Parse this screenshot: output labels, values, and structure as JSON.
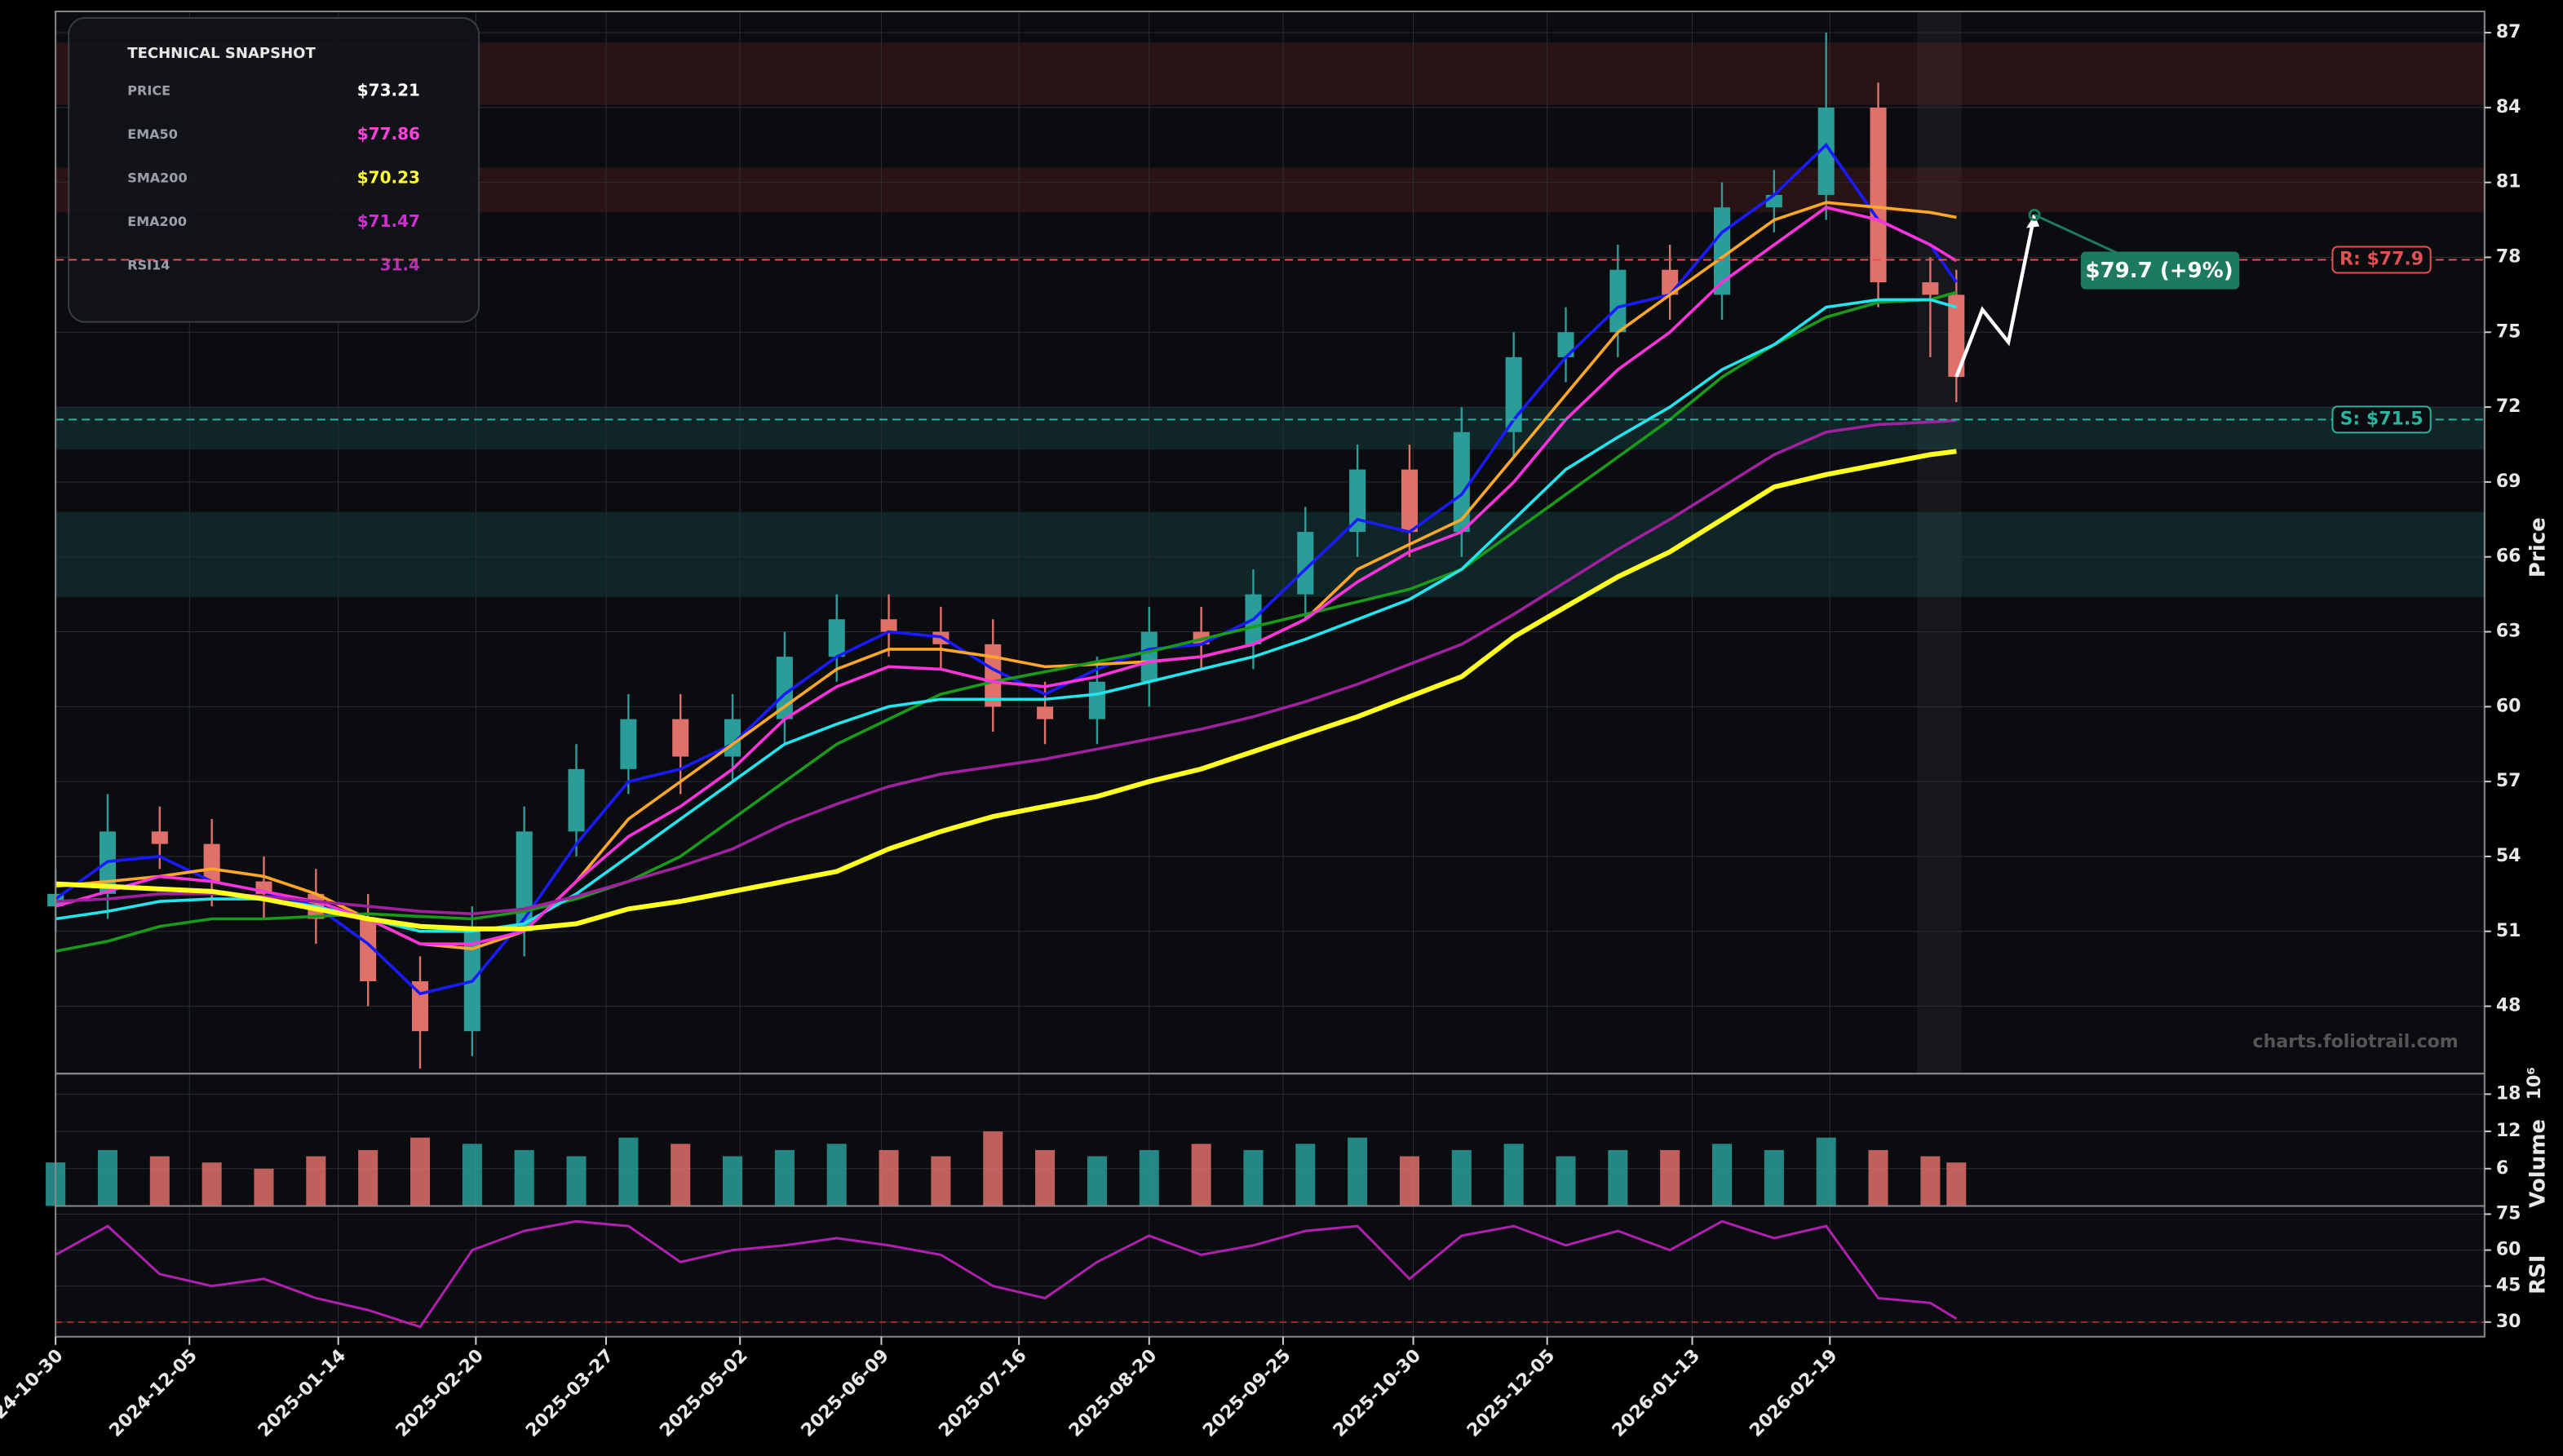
{
  "chart_data": {
    "type": "candlestick",
    "x": [
      "2024-10-30",
      "2024-11-13",
      "2024-11-27",
      "2024-12-11",
      "2024-12-25",
      "2025-01-08",
      "2025-01-22",
      "2025-02-05",
      "2025-02-19",
      "2025-03-05",
      "2025-03-19",
      "2025-04-02",
      "2025-04-16",
      "2025-04-30",
      "2025-05-14",
      "2025-05-28",
      "2025-06-11",
      "2025-06-25",
      "2025-07-09",
      "2025-07-23",
      "2025-08-06",
      "2025-08-20",
      "2025-09-03",
      "2025-09-17",
      "2025-10-01",
      "2025-10-15",
      "2025-10-29",
      "2025-11-12",
      "2025-11-26",
      "2025-12-10",
      "2025-12-24",
      "2026-01-07",
      "2026-01-21",
      "2026-02-04",
      "2026-02-18",
      "2026-03-04",
      "2026-03-18",
      "2026-03-25"
    ],
    "open": [
      52,
      52.5,
      55,
      54.5,
      53,
      52.5,
      51.5,
      49,
      47,
      51,
      55,
      57.5,
      59.5,
      58,
      59.5,
      62,
      63.5,
      63,
      62.5,
      60,
      59.5,
      61,
      63,
      62.5,
      64.5,
      67,
      69.5,
      67,
      71,
      74,
      75,
      77.5,
      76.5,
      80,
      80.5,
      84,
      77,
      76.5
    ],
    "high": [
      53.5,
      56.5,
      56,
      55.5,
      54,
      53.5,
      52.5,
      50,
      52,
      56,
      58.5,
      60.5,
      60.5,
      60.5,
      63,
      64.5,
      64.5,
      64,
      63.5,
      61,
      62,
      64,
      64,
      65.5,
      68,
      70.5,
      70.5,
      72,
      75,
      76,
      78.5,
      78.5,
      81,
      81.5,
      87,
      85,
      78,
      77.5
    ],
    "low": [
      51,
      51.5,
      53.5,
      52,
      51.5,
      50.5,
      48,
      45.5,
      46,
      50,
      54,
      56.5,
      56.5,
      57,
      58.5,
      61,
      62,
      61.5,
      59,
      58.5,
      58.5,
      60,
      61.5,
      61.5,
      63.5,
      66,
      66,
      66,
      70,
      73,
      74,
      75.5,
      75.5,
      79,
      79.5,
      76,
      74,
      72.2
    ],
    "close": [
      52.5,
      55,
      54.5,
      53,
      52.5,
      51.5,
      49,
      47,
      51,
      55,
      57.5,
      59.5,
      58,
      59.5,
      62,
      63.5,
      63,
      62.5,
      60,
      59.5,
      61,
      63,
      62.5,
      64.5,
      67,
      69.5,
      67,
      71,
      74,
      75,
      77.5,
      76.5,
      80,
      80.5,
      84,
      77,
      76.5,
      73.21
    ],
    "up_color": "#2a9d99",
    "down_color": "#e0706a",
    "xlim": [
      "2024-10-30",
      "2026-08-14"
    ],
    "xticks": [
      "2024-10-30",
      "2024-12-05",
      "2025-01-14",
      "2025-02-20",
      "2025-03-27",
      "2025-05-02",
      "2025-06-09",
      "2025-07-16",
      "2025-08-20",
      "2025-09-25",
      "2025-10-30",
      "2025-12-05",
      "2026-01-13",
      "2026-02-19"
    ],
    "ylim": [
      45.3,
      87.85
    ],
    "yticks": [
      48,
      51,
      54,
      57,
      60,
      63,
      66,
      69,
      72,
      75,
      78,
      81,
      84,
      87
    ],
    "y_label": "Price",
    "grid": true,
    "overlays": [
      {
        "color": "#1a1aff",
        "values": [
          52.3,
          53.8,
          54,
          53,
          52.6,
          52,
          50.5,
          48.5,
          49,
          51.5,
          54.5,
          57,
          57.5,
          58.5,
          60.5,
          62,
          63,
          62.8,
          61.5,
          60.5,
          61.5,
          62.3,
          62.5,
          63.5,
          65.5,
          67.5,
          67,
          68.5,
          71.5,
          74,
          76,
          76.5,
          79,
          80.5,
          82.5,
          79.5,
          78.5,
          77
        ]
      },
      {
        "color": "#ffa726",
        "values": [
          52.8,
          53,
          53.2,
          53.5,
          53.2,
          52.5,
          51.5,
          50.5,
          50.3,
          51,
          53,
          55.5,
          57,
          58.5,
          60,
          61.5,
          62.3,
          62.3,
          62,
          61.6,
          61.7,
          61.8,
          62,
          62.5,
          63.5,
          65.5,
          66.5,
          67.5,
          70,
          72.5,
          75,
          76.5,
          78,
          79.5,
          80.2,
          80,
          79.8,
          79.6
        ]
      },
      {
        "color": "#1a9a1a",
        "values": [
          50.2,
          50.6,
          51.2,
          51.5,
          51.5,
          51.6,
          51.7,
          51.6,
          51.5,
          51.8,
          52.3,
          53,
          54,
          55.5,
          57,
          58.5,
          59.5,
          60.5,
          61,
          61.4,
          61.8,
          62.2,
          62.7,
          63.2,
          63.7,
          64.2,
          64.7,
          65.5,
          67,
          68.5,
          70,
          71.5,
          73.2,
          74.5,
          75.6,
          76.2,
          76.3,
          76.6
        ]
      },
      {
        "color": "#22e5f0",
        "values": [
          51.5,
          51.8,
          52.2,
          52.3,
          52.3,
          52,
          51.5,
          51,
          51,
          51.3,
          52.5,
          54,
          55.5,
          57,
          58.5,
          59.3,
          60,
          60.3,
          60.3,
          60.3,
          60.5,
          61,
          61.5,
          62,
          62.7,
          63.5,
          64.3,
          65.5,
          67.5,
          69.5,
          70.8,
          72,
          73.5,
          74.5,
          76,
          76.3,
          76.3,
          76
        ]
      },
      {
        "color": "#ff33dd",
        "values": [
          52,
          52.6,
          53.2,
          53,
          52.6,
          52.2,
          51.5,
          50.5,
          50.5,
          51,
          53,
          54.8,
          56,
          57.5,
          59.5,
          60.8,
          61.6,
          61.5,
          61,
          60.8,
          61.2,
          61.8,
          62,
          62.5,
          63.5,
          65,
          66.2,
          67,
          69,
          71.5,
          73.5,
          75,
          77,
          78.5,
          80,
          79.5,
          78.5,
          77.86
        ]
      },
      {
        "color": "#a020a0",
        "values": [
          52.2,
          52.3,
          52.5,
          52.5,
          52.4,
          52.2,
          52,
          51.8,
          51.7,
          51.9,
          52.4,
          53,
          53.6,
          54.3,
          55.3,
          56.1,
          56.8,
          57.3,
          57.6,
          57.9,
          58.3,
          58.7,
          59.1,
          59.6,
          60.2,
          60.9,
          61.7,
          62.5,
          63.7,
          65,
          66.3,
          67.5,
          68.8,
          70.1,
          71,
          71.3,
          71.4,
          71.47
        ]
      },
      {
        "color": "#ffff22",
        "values": [
          52.9,
          52.8,
          52.7,
          52.6,
          52.3,
          51.9,
          51.5,
          51.2,
          51.1,
          51.1,
          51.3,
          51.9,
          52.2,
          52.6,
          53,
          53.4,
          54.3,
          55,
          55.6,
          56,
          56.4,
          57,
          57.5,
          58.2,
          58.9,
          59.6,
          60.4,
          61.2,
          62.8,
          64,
          65.2,
          66.2,
          67.5,
          68.8,
          69.3,
          69.7,
          70.1,
          70.23
        ]
      }
    ],
    "zones": [
      {
        "from": 84.1,
        "to": 86.6,
        "color": "#c0392b"
      },
      {
        "from": 79.8,
        "to": 81.6,
        "color": "#c0392b"
      },
      {
        "from": 70.3,
        "to": 72,
        "color": "#26a69a"
      },
      {
        "from": 64.4,
        "to": 67.8,
        "color": "#26a69a"
      }
    ],
    "levels": [
      {
        "value": 77.9,
        "label": "R: $77.9",
        "color": "#e05252"
      },
      {
        "value": 71.5,
        "label": "S: $71.5",
        "color": "#2bb3a0"
      }
    ],
    "forecast": {
      "x": [
        "2026-03-25",
        "2026-04-01",
        "2026-04-08",
        "2026-04-15"
      ],
      "values": [
        73.21,
        75.9,
        74.6,
        79.7
      ],
      "color": "#ffffff",
      "label": "$79.7 (+9%)",
      "label_color": "#1e7a5e"
    },
    "volume": {
      "values": [
        7,
        9,
        8,
        7,
        6,
        8,
        9,
        11,
        10,
        9,
        8,
        11,
        10,
        8,
        9,
        10,
        9,
        8,
        12,
        9,
        8,
        9,
        10,
        9,
        10,
        11,
        8,
        9,
        10,
        8,
        9,
        9,
        10,
        9,
        11,
        9,
        8,
        7
      ],
      "ylim": [
        0,
        21.3
      ],
      "yticks": [
        6,
        12,
        18
      ],
      "label": "Volume",
      "scale": "10⁶"
    },
    "rsi": {
      "values": [
        58,
        70,
        50,
        45,
        48,
        40,
        35,
        28,
        60,
        68,
        72,
        70,
        55,
        60,
        62,
        65,
        62,
        58,
        45,
        40,
        55,
        66,
        58,
        62,
        68,
        70,
        48,
        66,
        70,
        62,
        68,
        60,
        72,
        65,
        70,
        40,
        38,
        31.4
      ],
      "ylim": [
        23.9,
        78.4
      ],
      "yticks": [
        30,
        45,
        60,
        75
      ],
      "label": "RSI",
      "color": "#b01fb0",
      "threshold": 30,
      "threshold_color": "#a02a2a"
    },
    "watermark": "charts.foliotrail.com"
  },
  "snapshot": {
    "title": "TECHNICAL SNAPSHOT",
    "rows": [
      {
        "label": "PRICE",
        "value": "$73.21",
        "color": "#ffffff"
      },
      {
        "label": "EMA50",
        "value": "$77.86",
        "color": "#ff44dd"
      },
      {
        "label": "SMA200",
        "value": "$70.23",
        "color": "#ffff33"
      },
      {
        "label": "EMA200",
        "value": "$71.47",
        "color": "#d030d0"
      },
      {
        "label": "RSI14",
        "value": "31.4",
        "color": "#b52fb5"
      }
    ]
  }
}
